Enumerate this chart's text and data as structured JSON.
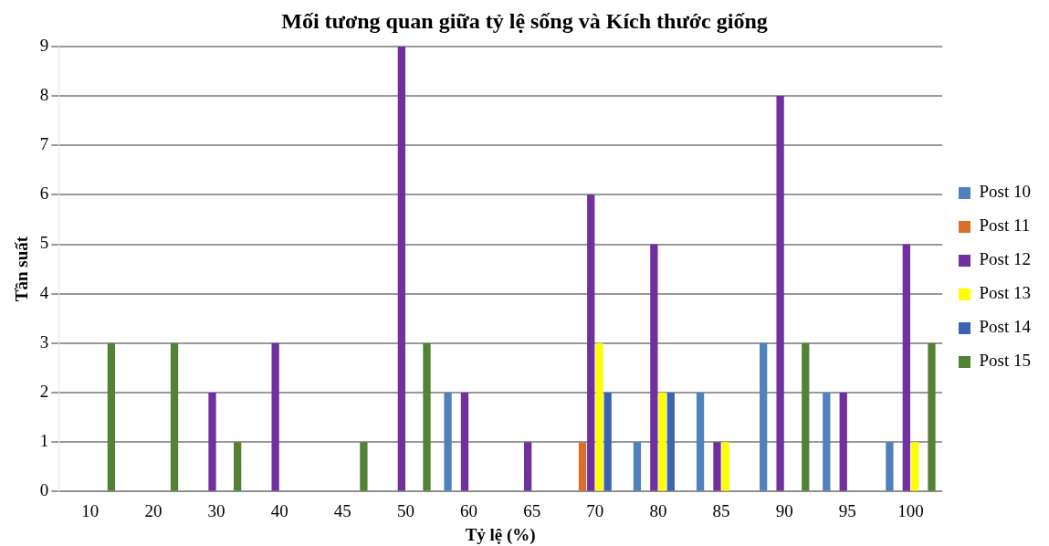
{
  "chart_data": {
    "type": "bar",
    "title": "Mối tương quan giữa tỷ lệ sống và Kích thước giống",
    "xlabel": "Tỷ lệ (%)",
    "ylabel": "Tần suất",
    "categories": [
      "10",
      "20",
      "30",
      "40",
      "45",
      "50",
      "60",
      "65",
      "70",
      "80",
      "85",
      "90",
      "95",
      "100"
    ],
    "series": [
      {
        "name": "Post 10",
        "color": "#4f81bd",
        "values": [
          0,
          0,
          0,
          0,
          0,
          0,
          2,
          0,
          0,
          1,
          2,
          3,
          2,
          1
        ]
      },
      {
        "name": "Post 11",
        "color": "#d9702a",
        "values": [
          0,
          0,
          0,
          0,
          0,
          0,
          0,
          0,
          1,
          0,
          0,
          0,
          0,
          0
        ]
      },
      {
        "name": "Post 12",
        "color": "#7030a0",
        "values": [
          0,
          0,
          2,
          3,
          0,
          9,
          2,
          1,
          6,
          5,
          1,
          8,
          2,
          5
        ]
      },
      {
        "name": "Post 13",
        "color": "#ffff00",
        "values": [
          0,
          0,
          0,
          0,
          0,
          0,
          0,
          0,
          3,
          2,
          1,
          0,
          0,
          1
        ]
      },
      {
        "name": "Post 14",
        "color": "#3a64b0",
        "values": [
          0,
          0,
          0,
          0,
          0,
          0,
          0,
          0,
          2,
          2,
          0,
          0,
          0,
          0
        ]
      },
      {
        "name": "Post 15",
        "color": "#548235",
        "values": [
          3,
          3,
          1,
          0,
          1,
          3,
          0,
          0,
          0,
          0,
          0,
          3,
          0,
          3
        ]
      }
    ],
    "ylim": [
      0,
      9
    ],
    "yticks": [
      0,
      1,
      2,
      3,
      4,
      5,
      6,
      7,
      8,
      9
    ],
    "grid": "y",
    "legend": "right"
  }
}
